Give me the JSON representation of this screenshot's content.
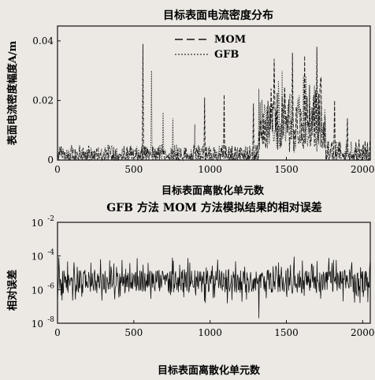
{
  "chart_data": [
    {
      "type": "line",
      "title": "目标表面电流密度分布",
      "xlabel": "目标表面离散化单元数",
      "ylabel": "表面电流密度幅度A/m",
      "xlim": [
        0,
        2050
      ],
      "ylim": [
        0,
        0.045
      ],
      "x_ticks": [
        0,
        500,
        1000,
        1500,
        2000
      ],
      "y_ticks": [
        0,
        0.02,
        0.04
      ],
      "x_tick_labels": [
        "0",
        "500",
        "1000",
        "1500",
        "2000"
      ],
      "y_tick_labels": [
        "0",
        "0.02",
        "0.04"
      ],
      "legend_position": "top-center",
      "series": [
        {
          "name": "MOM",
          "style": "dashed",
          "color": "#111111",
          "peaks": [
            [
              560,
              0.039
            ],
            [
              965,
              0.021
            ],
            [
              1090,
              0.022
            ],
            [
              1285,
              0.019
            ],
            [
              1420,
              0.034
            ],
            [
              1540,
              0.036
            ],
            [
              1620,
              0.035
            ],
            [
              1700,
              0.038
            ],
            [
              1725,
              0.027
            ],
            [
              1815,
              0.02
            ],
            [
              1900,
              0.014
            ]
          ]
        },
        {
          "name": "GFB",
          "style": "dotted",
          "color": "#333333",
          "peaks": [
            [
              615,
              0.03
            ],
            [
              690,
              0.016
            ],
            [
              755,
              0.014
            ],
            [
              900,
              0.012
            ],
            [
              1470,
              0.03
            ]
          ]
        }
      ],
      "segments": [
        {
          "x_range": [
            0,
            1320
          ],
          "y_range": [
            0.0,
            0.005
          ]
        },
        {
          "x_range": [
            1320,
            1760
          ],
          "y_range": [
            0.003,
            0.03
          ]
        },
        {
          "x_range": [
            1760,
            2050
          ],
          "y_range": [
            0.0,
            0.007
          ]
        }
      ]
    },
    {
      "type": "line",
      "title": "GFB 方法 MOM 方法模拟结果的相对误差",
      "xlabel": "目标表面离散化单元数",
      "ylabel": "相对误差",
      "xlim": [
        0,
        2050
      ],
      "ylim": [
        1e-08,
        0.01
      ],
      "yscale": "log",
      "x_ticks": [
        0,
        500,
        1000,
        1500,
        2000
      ],
      "y_ticks": [
        1e-08,
        1e-06,
        0.0001,
        0.01
      ],
      "x_tick_labels": [
        "0",
        "500",
        "1000",
        "1500",
        "2000"
      ],
      "y_tick_labels": [
        {
          "base": "10",
          "exp": "-8"
        },
        {
          "base": "10",
          "exp": "-6"
        },
        {
          "base": "10",
          "exp": "-4"
        },
        {
          "base": "10",
          "exp": "-2"
        }
      ],
      "baseline": 3e-06,
      "series": [
        {
          "color": "#111111",
          "spikes": [
            [
              560,
              3e-05
            ],
            [
              1320,
              2e-08
            ],
            [
              1050,
              6e-05
            ],
            [
              1700,
              5e-05
            ],
            [
              220,
              4e-05
            ],
            [
              800,
              3e-05
            ]
          ]
        }
      ]
    }
  ]
}
